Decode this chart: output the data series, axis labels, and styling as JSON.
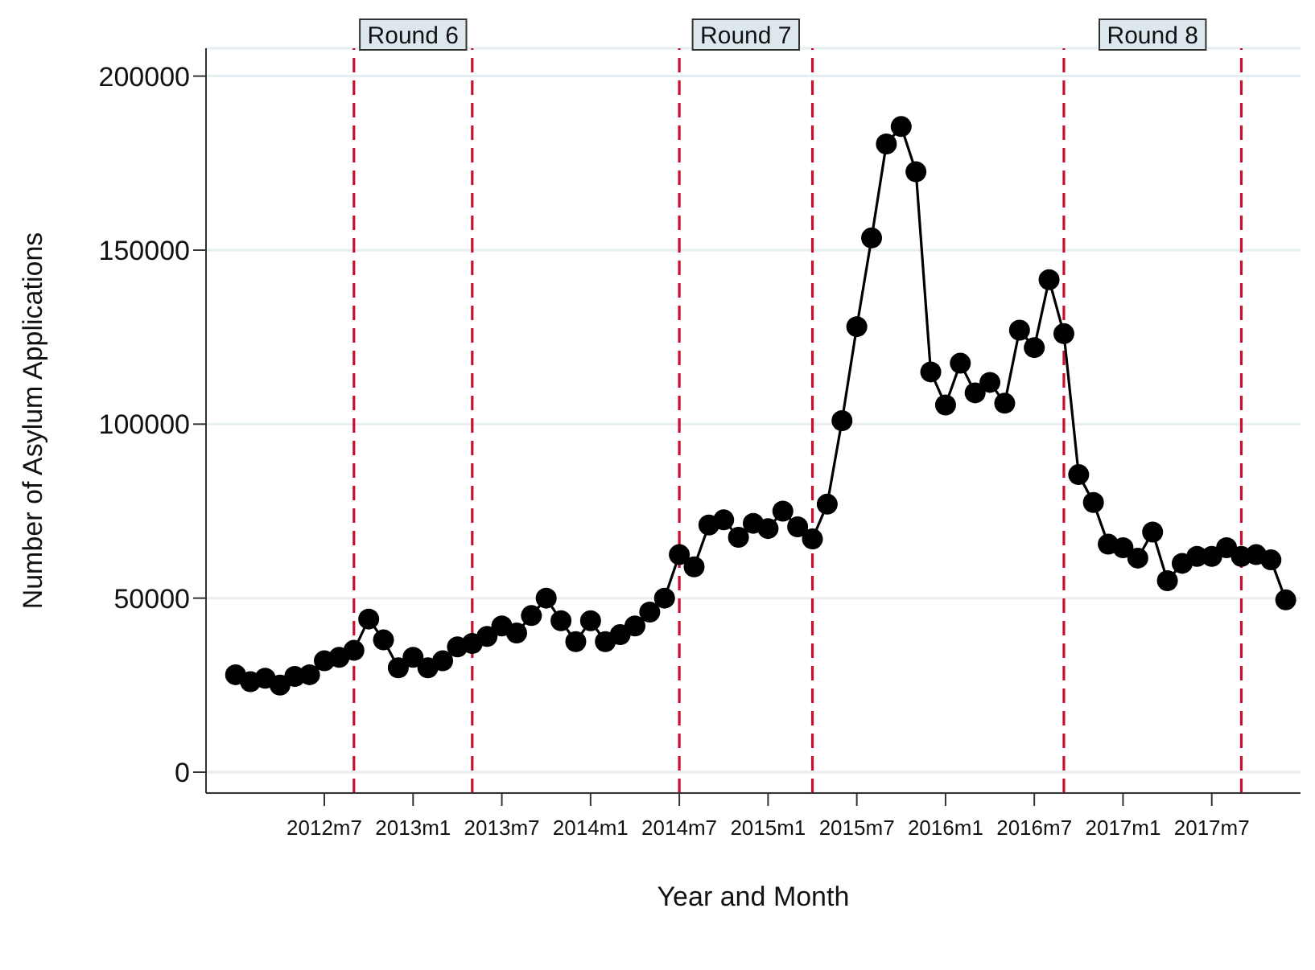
{
  "chart_data": {
    "type": "line",
    "xlabel": "Year and Month",
    "ylabel": "Number of Asylum Applications",
    "x": [
      "2012-01",
      "2012-02",
      "2012-03",
      "2012-04",
      "2012-05",
      "2012-06",
      "2012-07",
      "2012-08",
      "2012-09",
      "2012-10",
      "2012-11",
      "2012-12",
      "2013-01",
      "2013-02",
      "2013-03",
      "2013-04",
      "2013-05",
      "2013-06",
      "2013-07",
      "2013-08",
      "2013-09",
      "2013-10",
      "2013-11",
      "2013-12",
      "2014-01",
      "2014-02",
      "2014-03",
      "2014-04",
      "2014-05",
      "2014-06",
      "2014-07",
      "2014-08",
      "2014-09",
      "2014-10",
      "2014-11",
      "2014-12",
      "2015-01",
      "2015-02",
      "2015-03",
      "2015-04",
      "2015-05",
      "2015-06",
      "2015-07",
      "2015-08",
      "2015-09",
      "2015-10",
      "2015-11",
      "2015-12",
      "2016-01",
      "2016-02",
      "2016-03",
      "2016-04",
      "2016-05",
      "2016-06",
      "2016-07",
      "2016-08",
      "2016-09",
      "2016-10",
      "2016-11",
      "2016-12",
      "2017-01",
      "2017-02",
      "2017-03",
      "2017-04",
      "2017-05",
      "2017-06",
      "2017-07",
      "2017-08",
      "2017-09",
      "2017-10",
      "2017-11",
      "2017-12"
    ],
    "series": [
      {
        "color": "#000000",
        "values": [
          28000,
          26000,
          27000,
          25000,
          27500,
          28000,
          32000,
          33000,
          35000,
          44000,
          38000,
          30000,
          33000,
          30000,
          32000,
          36000,
          37000,
          39000,
          42000,
          40000,
          45000,
          50000,
          43500,
          37500,
          43500,
          37500,
          39500,
          42000,
          46000,
          50000,
          62500,
          59000,
          71000,
          72500,
          67500,
          71500,
          70000,
          75000,
          70500,
          67000,
          77000,
          101000,
          128000,
          153500,
          180500,
          185500,
          172500,
          115000,
          105500,
          117500,
          109000,
          112000,
          106000,
          127000,
          122000,
          141500,
          126000,
          85500,
          77500,
          65500,
          64500,
          61500,
          69000,
          55000,
          60000,
          62000,
          62000,
          64500,
          62000,
          62500,
          61000,
          49500
        ]
      }
    ],
    "xlim": [
      "2011-11",
      "2018-01"
    ],
    "xticks": [
      {
        "value": "2012-07",
        "label": "2012m7"
      },
      {
        "value": "2013-01",
        "label": "2013m1"
      },
      {
        "value": "2013-07",
        "label": "2013m7"
      },
      {
        "value": "2014-01",
        "label": "2014m1"
      },
      {
        "value": "2014-07",
        "label": "2014m7"
      },
      {
        "value": "2015-01",
        "label": "2015m1"
      },
      {
        "value": "2015-07",
        "label": "2015m7"
      },
      {
        "value": "2016-01",
        "label": "2016m1"
      },
      {
        "value": "2016-07",
        "label": "2016m7"
      },
      {
        "value": "2017-01",
        "label": "2017m1"
      },
      {
        "value": "2017-07",
        "label": "2017m7"
      }
    ],
    "ylim": [
      -6000,
      208000
    ],
    "yticks": [
      0,
      50000,
      100000,
      150000,
      200000
    ],
    "ref_lines": [
      {
        "axis": "x",
        "value": "2012-09",
        "color": "#c8102e",
        "line_style": "dashed"
      },
      {
        "axis": "x",
        "value": "2013-05",
        "color": "#c8102e",
        "line_style": "dashed"
      },
      {
        "axis": "x",
        "value": "2014-07",
        "color": "#c8102e",
        "line_style": "dashed"
      },
      {
        "axis": "x",
        "value": "2015-04",
        "color": "#c8102e",
        "line_style": "dashed"
      },
      {
        "axis": "x",
        "value": "2016-09",
        "color": "#c8102e",
        "line_style": "dashed"
      },
      {
        "axis": "x",
        "value": "2017-09",
        "color": "#c8102e",
        "line_style": "dashed"
      }
    ],
    "annotations": [
      "Round 6",
      "Round 7",
      "Round 8"
    ],
    "grid": "y",
    "marker": "circle",
    "line_style": "solid",
    "legend": false
  }
}
